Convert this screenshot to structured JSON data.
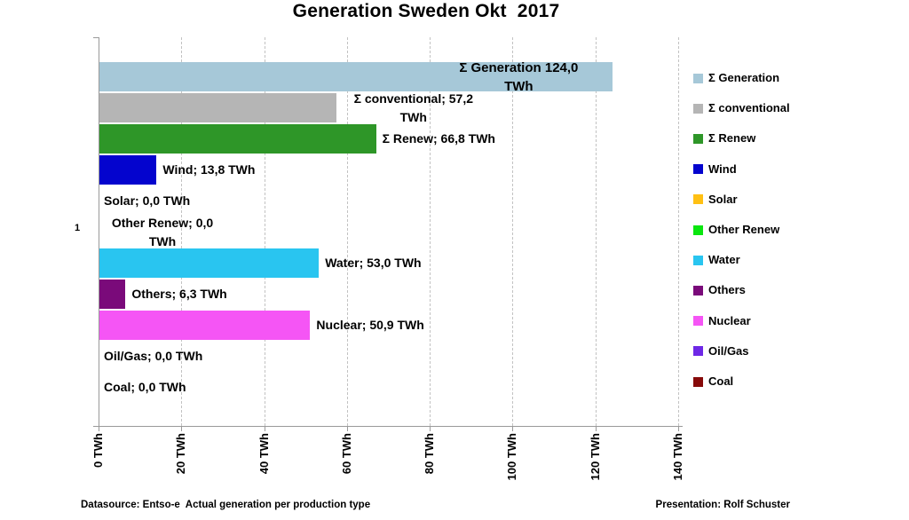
{
  "title": "Generation Sweden Okt  2017",
  "category_label": "1",
  "footer": {
    "left": "Datasource: Entso-e  Actual generation per production type",
    "right": "Presentation: Rolf Schuster"
  },
  "colors": {
    "axis": "#9a9a9a",
    "gridline": "#c2c2c2",
    "text": "#000000"
  },
  "chart_data": {
    "type": "bar",
    "orientation": "horizontal",
    "title": "Generation Sweden Okt  2017",
    "unit": "TWh",
    "category": "1",
    "grid": "vertical-dashed",
    "legend_position": "right",
    "x_axis": {
      "min": 0,
      "max": 140,
      "step": 20,
      "ticks": [
        "0 TWh",
        "20 TWh",
        "40 TWh",
        "60 TWh",
        "80 TWh",
        "100 TWh",
        "120 TWh",
        "140 TWh"
      ]
    },
    "series": [
      {
        "name": "Σ Generation",
        "value": 124.0,
        "color": "#a6c8d8",
        "label_lines": [
          "Σ Generation 124,0",
          "TWh"
        ],
        "label_placement": "inside-end"
      },
      {
        "name": "Σ conventional",
        "value": 57.2,
        "color": "#b5b5b5",
        "label_lines": [
          "Σ conventional; 57,2",
          "TWh"
        ],
        "label_placement": "outside-end"
      },
      {
        "name": "Σ Renew",
        "value": 66.8,
        "color": "#2e9628",
        "label_lines": [
          "Σ Renew; 66,8 TWh"
        ],
        "label_placement": "outside-end"
      },
      {
        "name": "Wind",
        "value": 13.8,
        "color": "#0404ce",
        "label_lines": [
          "Wind; 13,8 TWh"
        ],
        "label_placement": "outside-end"
      },
      {
        "name": "Solar",
        "value": 0.0,
        "color": "#ffc013",
        "label_lines": [
          "Solar; 0,0 TWh"
        ],
        "label_placement": "axis"
      },
      {
        "name": "Other Renew",
        "value": 0.0,
        "color": "#0ae60f",
        "label_lines": [
          "Other Renew; 0,0",
          "TWh"
        ],
        "label_placement": "axis"
      },
      {
        "name": "Water",
        "value": 53.0,
        "color": "#29c5f0",
        "label_lines": [
          "Water; 53,0 TWh"
        ],
        "label_placement": "outside-end"
      },
      {
        "name": "Others",
        "value": 6.3,
        "color": "#7a0a7a",
        "label_lines": [
          "Others; 6,3 TWh"
        ],
        "label_placement": "outside-end"
      },
      {
        "name": "Nuclear",
        "value": 50.9,
        "color": "#f555f5",
        "label_lines": [
          "Nuclear; 50,9 TWh"
        ],
        "label_placement": "outside-end"
      },
      {
        "name": "Oil/Gas",
        "value": 0.0,
        "color": "#6e28e6",
        "label_lines": [
          "Oil/Gas; 0,0 TWh"
        ],
        "label_placement": "axis"
      },
      {
        "name": "Coal",
        "value": 0.0,
        "color": "#870a0a",
        "label_lines": [
          "Coal; 0,0 TWh"
        ],
        "label_placement": "axis"
      }
    ]
  }
}
